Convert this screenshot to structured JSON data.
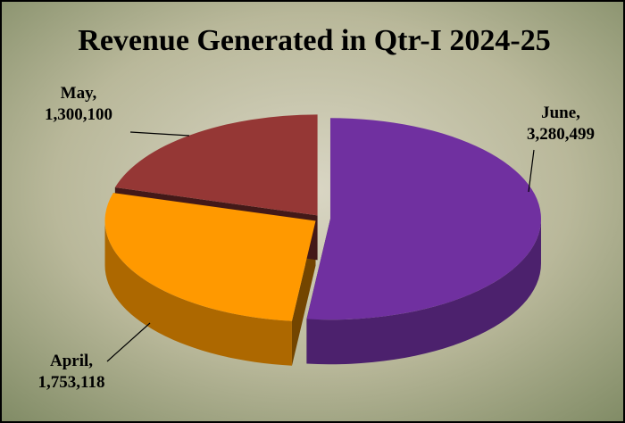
{
  "chart_data": {
    "type": "pie3d",
    "title": "Revenue Generated in Qtr-I 2024-25",
    "categories": [
      "June,",
      "April,",
      "May,"
    ],
    "values": [
      3280499,
      1753118,
      1300100
    ],
    "value_labels": [
      "3,280,499",
      "1,753,118",
      "1,300,100"
    ],
    "colors": [
      "#7030a0",
      "#ff9900",
      "#953735"
    ]
  }
}
